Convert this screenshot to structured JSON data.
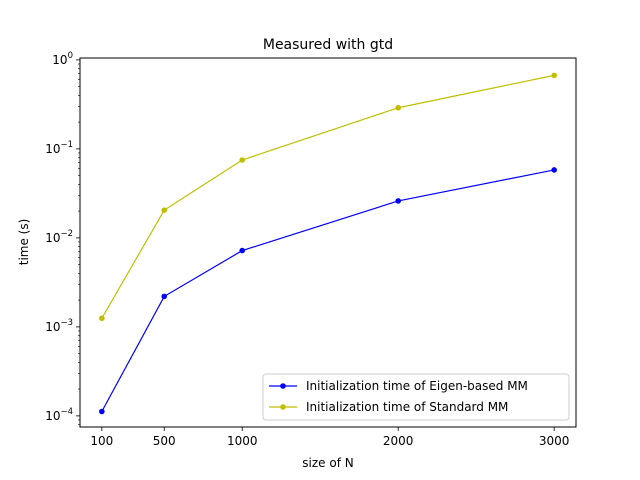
{
  "chart_data": {
    "type": "line",
    "title": "Measured with gtd",
    "xlabel": "size of N",
    "ylabel": "time (s)",
    "yscale": "log",
    "x": [
      100,
      500,
      1000,
      2000,
      3000
    ],
    "xticks": [
      "100",
      "500",
      "1000",
      "2000",
      "3000"
    ],
    "yticks": [
      {
        "value": 0.0001,
        "base": "10",
        "exp": "−4"
      },
      {
        "value": 0.001,
        "base": "10",
        "exp": "−3"
      },
      {
        "value": 0.01,
        "base": "10",
        "exp": "−2"
      },
      {
        "value": 0.1,
        "base": "10",
        "exp": "−1"
      },
      {
        "value": 1,
        "base": "10",
        "exp": "0"
      }
    ],
    "xlim": [
      -40,
      3140
    ],
    "ylim": [
      7.5e-05,
      1.05
    ],
    "grid": false,
    "legend_position": "lower-right",
    "series": [
      {
        "name": "Initialization time of Eigen-based MM",
        "color": "#0000ff",
        "values": [
          0.000112,
          0.0022,
          0.0072,
          0.026,
          0.058
        ]
      },
      {
        "name": "Initialization time of Standard MM",
        "color": "#bfbf00",
        "values": [
          0.00125,
          0.0205,
          0.075,
          0.29,
          0.67
        ]
      }
    ]
  }
}
